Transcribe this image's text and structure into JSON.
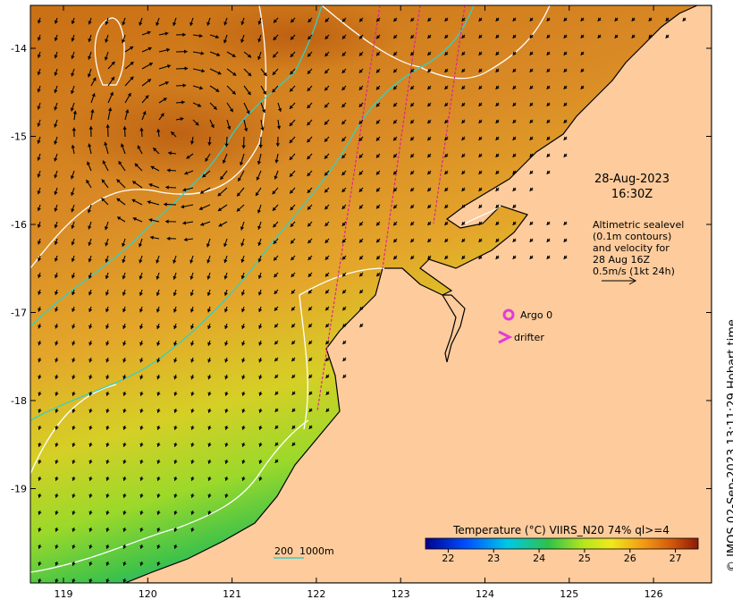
{
  "map": {
    "lon_ticks": [
      "119",
      "120",
      "121",
      "122",
      "123",
      "124",
      "125",
      "126"
    ],
    "lat_ticks": [
      "-14",
      "-15",
      "-16",
      "-17",
      "-18",
      "-19"
    ],
    "date": "28-Aug-2023",
    "time": "16:30Z",
    "altimetry_lines": [
      "Altimetric sealevel",
      "(0.1m contours)",
      "and velocity for",
      "28 Aug 16Z",
      "0.5m/s (1kt 24h)"
    ],
    "legend_argo": "Argo 0",
    "legend_drifter": "drifter",
    "depth_label": "200  1000m",
    "colorbar_title": "Temperature (°C) VIIRS_N20 74% ql>=4",
    "colorbar_ticks": [
      "22",
      "23",
      "24",
      "25",
      "26",
      "27"
    ],
    "colorbar_range": [
      21.5,
      27.5
    ],
    "credit": "© IMOS 02-Sep-2023 13:11:29 Hobart time",
    "colors": {
      "land": "#fdcb9c",
      "warm": "#d9821e",
      "cool": "#46c24a",
      "contour": "#ffffff",
      "isobath": "#34d0c4",
      "track": "#e0209a",
      "argo": "#e33bd8"
    }
  }
}
